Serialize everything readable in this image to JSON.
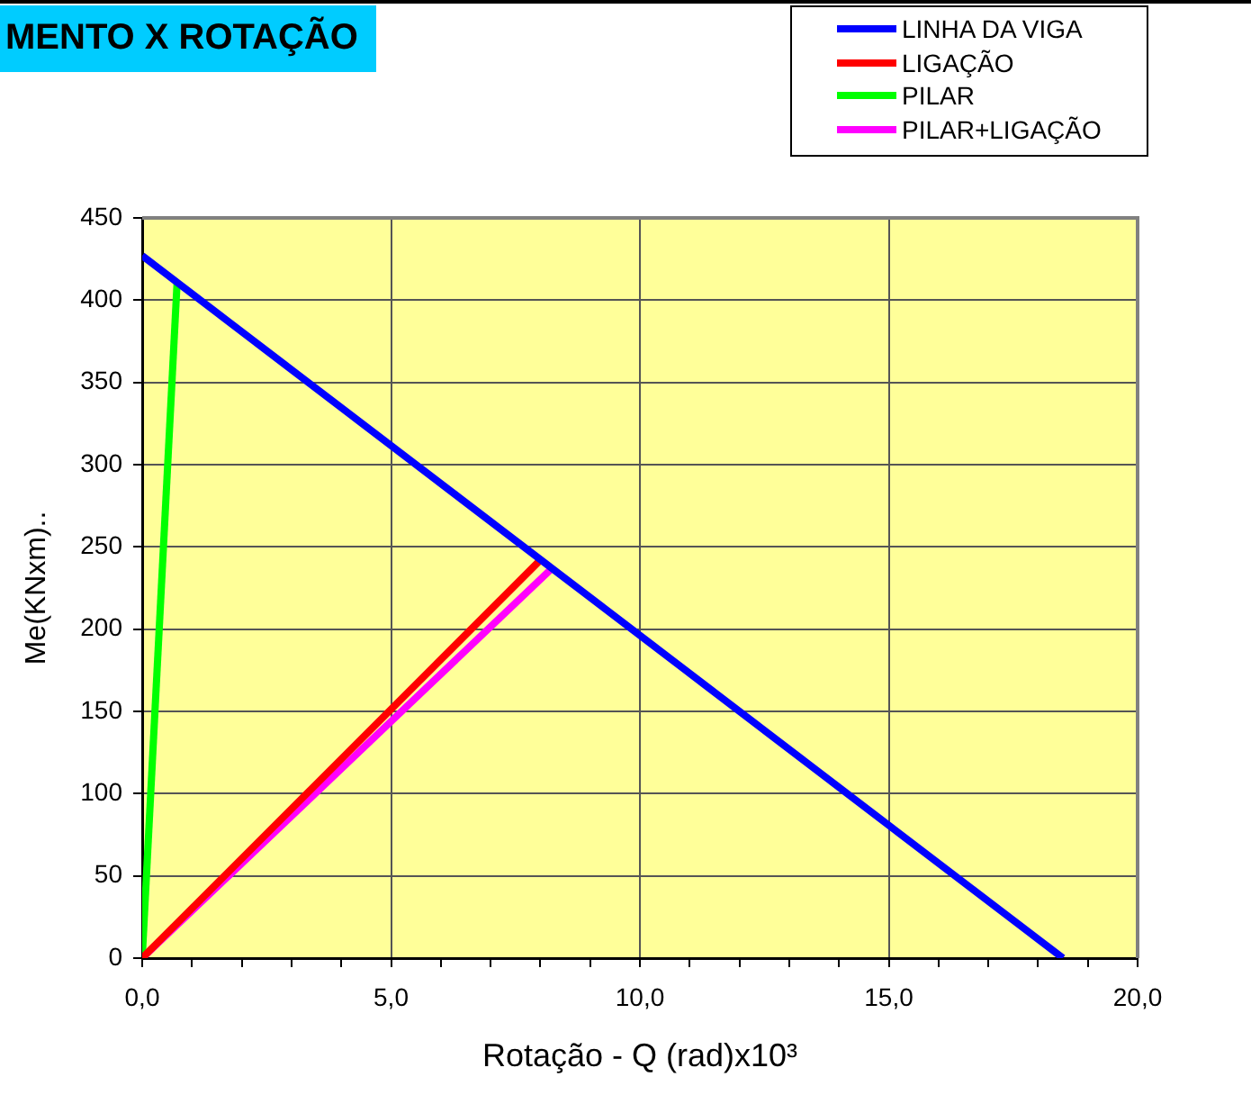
{
  "chart_data": {
    "type": "line",
    "title": "MENTO X ROTAÇÃO",
    "xlabel": "Rotação - Q (rad)x10³",
    "ylabel": "Me(KNxm)..",
    "xlim": [
      0,
      20
    ],
    "xticks": [
      {
        "value": 0,
        "label": "0,0"
      },
      {
        "value": 1,
        "label": null
      },
      {
        "value": 2,
        "label": null
      },
      {
        "value": 3,
        "label": null
      },
      {
        "value": 4,
        "label": null
      },
      {
        "value": 5,
        "label": "5,0"
      },
      {
        "value": 6,
        "label": null
      },
      {
        "value": 7,
        "label": null
      },
      {
        "value": 8,
        "label": null
      },
      {
        "value": 9,
        "label": null
      },
      {
        "value": 10,
        "label": "10,0"
      },
      {
        "value": 11,
        "label": null
      },
      {
        "value": 12,
        "label": null
      },
      {
        "value": 13,
        "label": null
      },
      {
        "value": 14,
        "label": null
      },
      {
        "value": 15,
        "label": "15,0"
      },
      {
        "value": 16,
        "label": null
      },
      {
        "value": 17,
        "label": null
      },
      {
        "value": 18,
        "label": null
      },
      {
        "value": 19,
        "label": null
      },
      {
        "value": 20,
        "label": "20,0"
      }
    ],
    "ylim": [
      0,
      450
    ],
    "yticks": [
      0,
      50,
      100,
      150,
      200,
      250,
      300,
      350,
      400,
      450
    ],
    "grid": true,
    "legend": "top right",
    "marker": "none",
    "line_style": "solid",
    "series": [
      {
        "name": "LINHA DA VIGA",
        "color": "#0000ff",
        "x": [
          0,
          18.5
        ],
        "values": [
          427,
          0
        ]
      },
      {
        "name": "LIGAÇÃO",
        "color": "#ff0000",
        "x": [
          0,
          8.0
        ],
        "values": [
          0,
          242
        ]
      },
      {
        "name": "PILAR",
        "color": "#00ff00",
        "x": [
          0,
          0.7
        ],
        "values": [
          0,
          410
        ]
      },
      {
        "name": "PILAR+LIGAÇÃO",
        "color": "#ff00ff",
        "x": [
          0,
          8.2
        ],
        "values": [
          0,
          236
        ]
      }
    ]
  }
}
